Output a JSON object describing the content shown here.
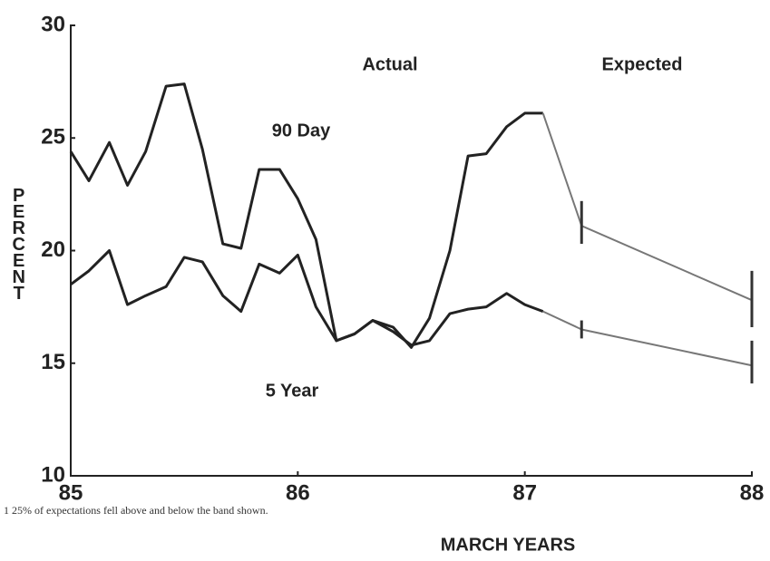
{
  "chart_data": {
    "type": "line",
    "xlabel": "MARCH YEARS",
    "ylabel": "PERCENT",
    "xlim": [
      85,
      88
    ],
    "xticks": [
      85,
      86,
      87,
      88
    ],
    "ylim": [
      10,
      30
    ],
    "yticks": [
      10,
      15,
      20,
      25,
      30
    ],
    "annotations": [
      "Actual",
      "Expected",
      "90 Day",
      "5 Year"
    ],
    "footnote": "1  25% of expectations fell above and below the band shown.",
    "series": [
      {
        "name": "90 Day",
        "color": "#222222",
        "x": [
          85,
          85.08,
          85.17,
          85.25,
          85.33,
          85.42,
          85.5,
          85.58,
          85.67,
          85.75,
          85.83,
          85.92,
          86,
          86.08,
          86.17,
          86.25,
          86.33,
          86.42,
          86.5,
          86.58,
          86.67,
          86.75,
          86.83,
          86.92,
          87,
          87.08
        ],
        "values": [
          24.4,
          23.1,
          24.8,
          22.9,
          24.4,
          27.3,
          27.4,
          24.5,
          20.3,
          20.1,
          23.6,
          23.6,
          22.3,
          20.5,
          16.0,
          16.3,
          16.9,
          16.6,
          15.7,
          17.0,
          20.0,
          24.2,
          24.3,
          25.5,
          26.1,
          26.1
        ],
        "expected": {
          "color": "#777777",
          "x": [
            87.25,
            88
          ],
          "values": [
            21.1,
            17.8
          ],
          "low": [
            20.3,
            16.6
          ],
          "high": [
            22.2,
            19.1
          ]
        }
      },
      {
        "name": "5 Year",
        "color": "#222222",
        "x": [
          85,
          85.08,
          85.17,
          85.25,
          85.33,
          85.42,
          85.5,
          85.58,
          85.67,
          85.75,
          85.83,
          85.92,
          86,
          86.08,
          86.17,
          86.25,
          86.33,
          86.42,
          86.5,
          86.58,
          86.67,
          86.75,
          86.83,
          86.92,
          87,
          87.08
        ],
        "values": [
          18.5,
          19.1,
          20.0,
          17.6,
          18.0,
          18.4,
          19.7,
          19.5,
          18.0,
          17.3,
          19.4,
          19.0,
          19.8,
          17.5,
          16.0,
          16.3,
          16.9,
          16.4,
          15.8,
          16.0,
          17.2,
          17.4,
          17.5,
          18.1,
          17.6,
          17.3
        ],
        "expected": {
          "color": "#777777",
          "x": [
            87.25,
            88
          ],
          "values": [
            16.5,
            14.9
          ],
          "low": [
            16.1,
            14.1
          ],
          "high": [
            16.9,
            16.0
          ]
        }
      }
    ]
  }
}
